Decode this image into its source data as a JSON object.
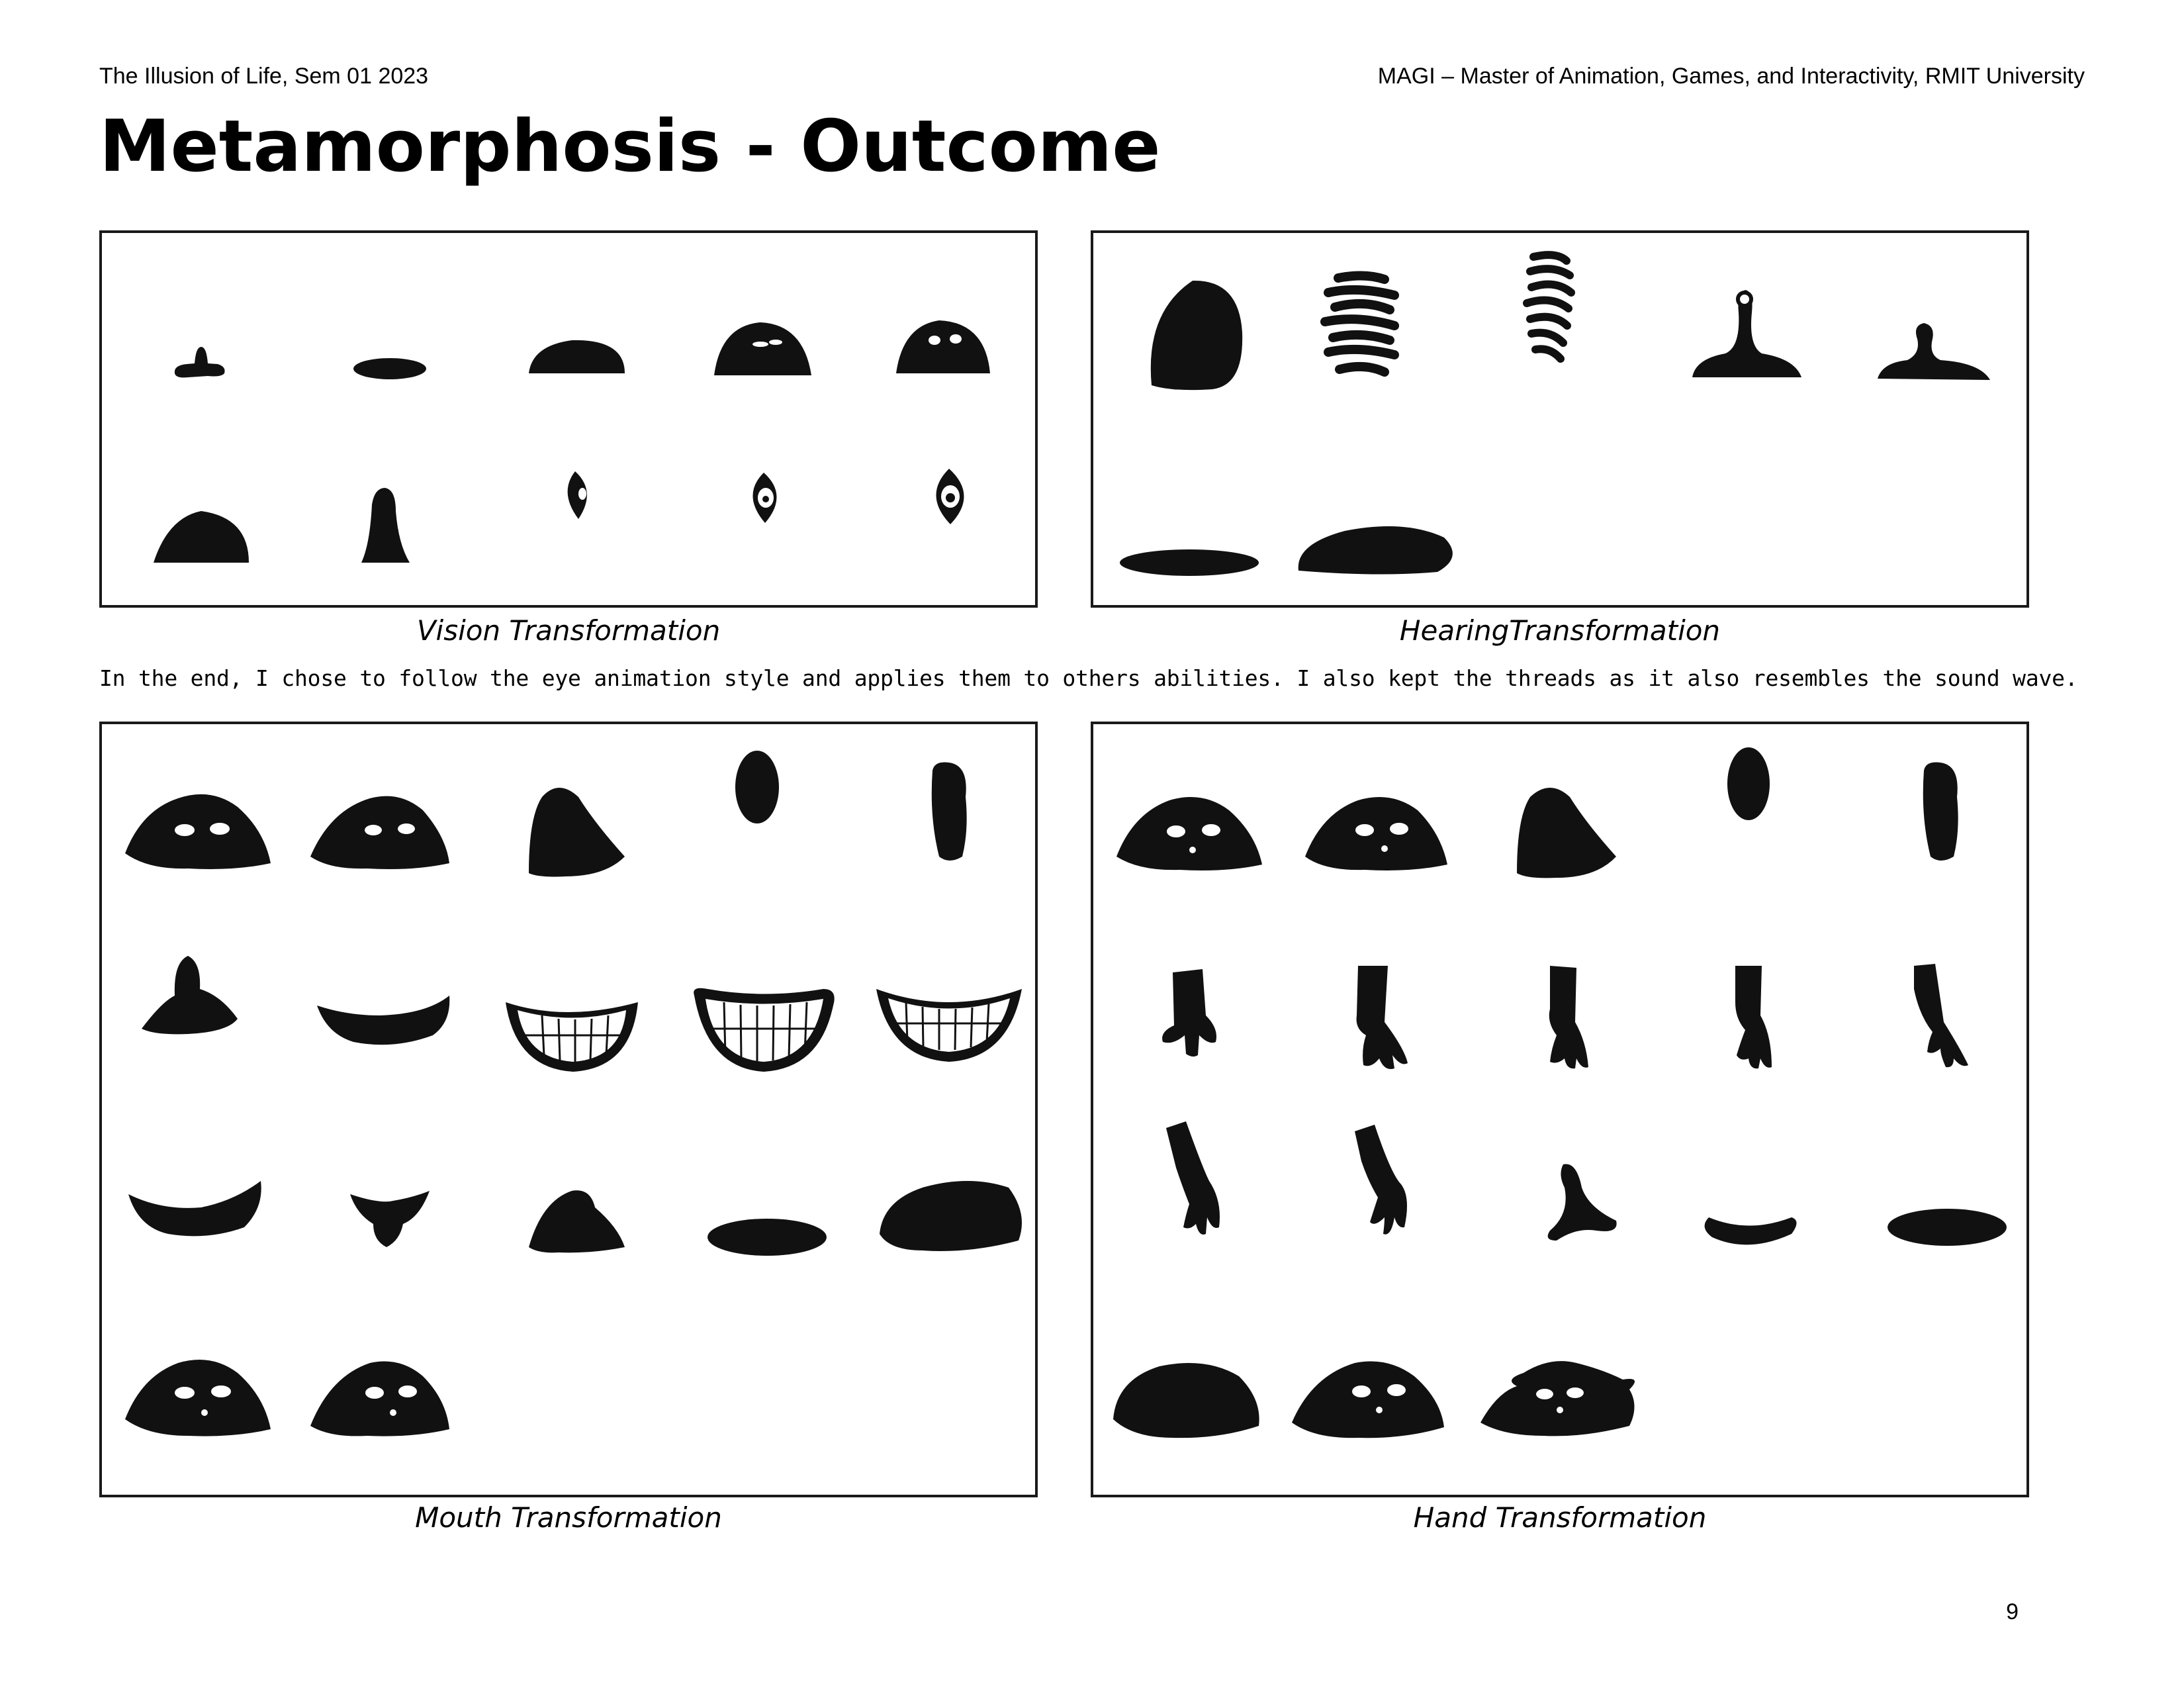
{
  "header": {
    "left": "The Illusion of Life, Sem 01 2023",
    "right": "MAGI – Master of Animation, Games, and Interactivity, RMIT University"
  },
  "title": "Metamorphosis - Outcome",
  "panels": {
    "vision": {
      "caption": "Vision Transformation"
    },
    "hearing": {
      "caption": "HearingTransformation"
    },
    "mouth": {
      "caption": "Mouth Transformation"
    },
    "hand": {
      "caption": "Hand Transformation"
    }
  },
  "body_text": "In the end, I chose to follow the eye animation style and applies them to others abilities. I also kept the threads as it also resembles the sound wave.",
  "page_number": "9",
  "colors": {
    "ink": "#111111",
    "border": "#1a1a1a",
    "background": "#ffffff"
  }
}
